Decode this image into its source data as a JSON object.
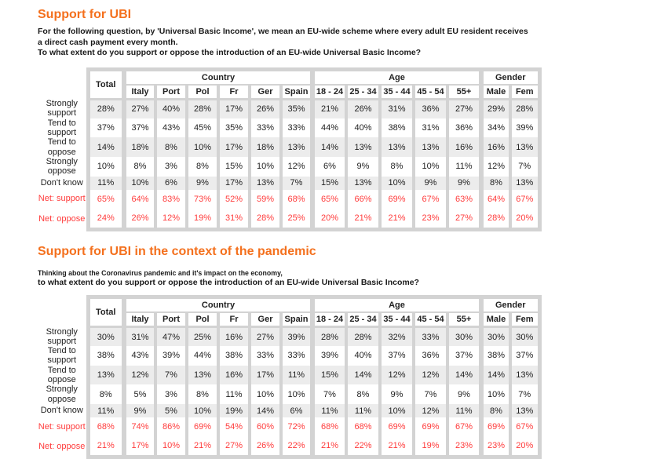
{
  "colors": {
    "accent": "#f4701d",
    "net_value": "#ff3b3b",
    "frame_grey": "#d3d3d3",
    "row_shade": "#ececec"
  },
  "columns": {
    "total": "Total",
    "groups": [
      {
        "label": "Country",
        "cols": [
          "Italy",
          "Port",
          "Pol",
          "Fr",
          "Ger",
          "Spain"
        ]
      },
      {
        "label": "Age",
        "cols": [
          "18 - 24",
          "25 - 34",
          "35 - 44",
          "45 - 54",
          "55+"
        ]
      },
      {
        "label": "Gender",
        "cols": [
          "Male",
          "Fem"
        ]
      }
    ]
  },
  "sections": [
    {
      "title": "Support for UBI",
      "intro": [
        "For the following question, by 'Universal Basic Income', we mean an EU-wide scheme where every adult EU resident receives",
        "a direct cash payment every month.",
        "To what extent do you support or oppose the introduction of an EU-wide Universal Basic Income?"
      ],
      "rows": [
        {
          "label": "Strongly support",
          "net": false,
          "values": [
            "28%",
            "27%",
            "40%",
            "28%",
            "17%",
            "26%",
            "35%",
            "21%",
            "26%",
            "31%",
            "36%",
            "27%",
            "29%",
            "28%"
          ]
        },
        {
          "label": "Tend to support",
          "net": false,
          "values": [
            "37%",
            "37%",
            "43%",
            "45%",
            "35%",
            "33%",
            "33%",
            "44%",
            "40%",
            "38%",
            "31%",
            "36%",
            "34%",
            "39%"
          ]
        },
        {
          "label": "Tend to oppose",
          "net": false,
          "values": [
            "14%",
            "18%",
            "8%",
            "10%",
            "17%",
            "18%",
            "13%",
            "14%",
            "13%",
            "13%",
            "13%",
            "16%",
            "16%",
            "13%"
          ]
        },
        {
          "label": "Strongly oppose",
          "net": false,
          "values": [
            "10%",
            "8%",
            "3%",
            "8%",
            "15%",
            "10%",
            "12%",
            "6%",
            "9%",
            "8%",
            "10%",
            "11%",
            "12%",
            "7%"
          ]
        },
        {
          "label": "Don't know",
          "net": false,
          "values": [
            "11%",
            "10%",
            "6%",
            "9%",
            "17%",
            "13%",
            "7%",
            "15%",
            "13%",
            "10%",
            "9%",
            "9%",
            "8%",
            "13%"
          ]
        },
        {
          "label": "Net: support",
          "net": true,
          "values": [
            "65%",
            "64%",
            "83%",
            "73%",
            "52%",
            "59%",
            "68%",
            "65%",
            "66%",
            "69%",
            "67%",
            "63%",
            "64%",
            "67%"
          ]
        },
        {
          "label": "Net: oppose",
          "net": true,
          "values": [
            "24%",
            "26%",
            "12%",
            "19%",
            "31%",
            "28%",
            "25%",
            "20%",
            "21%",
            "21%",
            "23%",
            "27%",
            "28%",
            "20%"
          ]
        }
      ]
    },
    {
      "title": "Support for UBI in the context of the pandemic",
      "intro_small": "Thinking about the Coronavirus pandemic and it's impact on the economy,",
      "intro": [
        "to what extent do you support or oppose the introduction of an EU-wide Universal Basic Income?"
      ],
      "rows": [
        {
          "label": "Strongly support",
          "net": false,
          "values": [
            "30%",
            "31%",
            "47%",
            "25%",
            "16%",
            "27%",
            "39%",
            "28%",
            "28%",
            "32%",
            "33%",
            "30%",
            "30%",
            "30%"
          ]
        },
        {
          "label": "Tend to support",
          "net": false,
          "values": [
            "38%",
            "43%",
            "39%",
            "44%",
            "38%",
            "33%",
            "33%",
            "39%",
            "40%",
            "37%",
            "36%",
            "37%",
            "38%",
            "37%"
          ]
        },
        {
          "label": "Tend to oppose",
          "net": false,
          "values": [
            "13%",
            "12%",
            "7%",
            "13%",
            "16%",
            "17%",
            "11%",
            "15%",
            "14%",
            "12%",
            "12%",
            "14%",
            "14%",
            "13%"
          ]
        },
        {
          "label": "Strongly oppose",
          "net": false,
          "values": [
            "8%",
            "5%",
            "3%",
            "8%",
            "11%",
            "10%",
            "10%",
            "7%",
            "8%",
            "9%",
            "7%",
            "9%",
            "10%",
            "7%"
          ]
        },
        {
          "label": "Don't know",
          "net": false,
          "values": [
            "11%",
            "9%",
            "5%",
            "10%",
            "19%",
            "14%",
            "6%",
            "11%",
            "11%",
            "10%",
            "12%",
            "11%",
            "8%",
            "13%"
          ]
        },
        {
          "label": "Net: support",
          "net": true,
          "values": [
            "68%",
            "74%",
            "86%",
            "69%",
            "54%",
            "60%",
            "72%",
            "68%",
            "68%",
            "69%",
            "69%",
            "67%",
            "69%",
            "67%"
          ]
        },
        {
          "label": "Net: oppose",
          "net": true,
          "values": [
            "21%",
            "17%",
            "10%",
            "21%",
            "27%",
            "26%",
            "22%",
            "21%",
            "22%",
            "21%",
            "19%",
            "23%",
            "23%",
            "20%"
          ]
        }
      ]
    }
  ]
}
